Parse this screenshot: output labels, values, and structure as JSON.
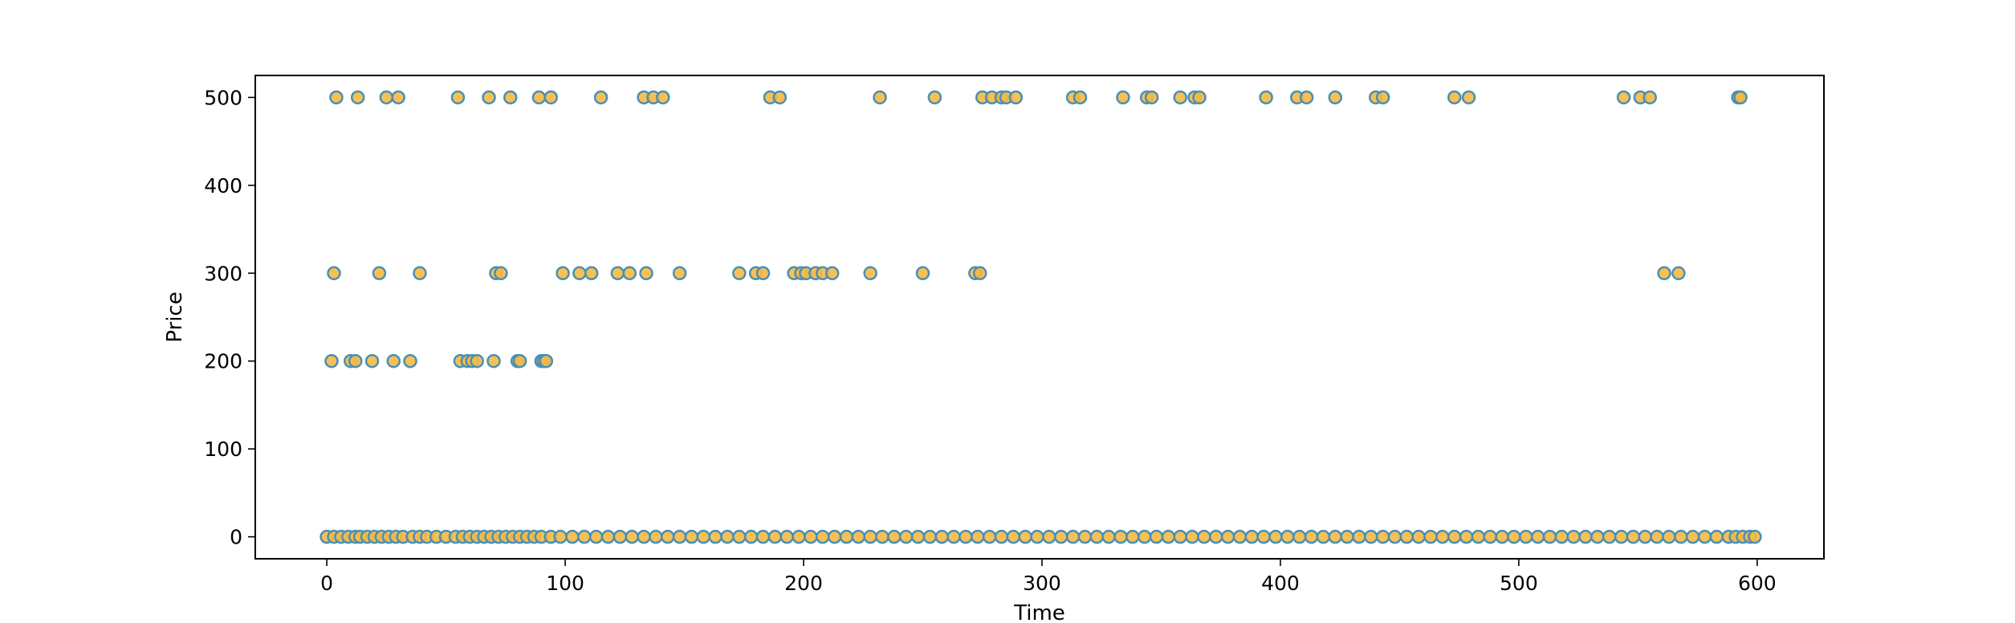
{
  "chart_data": {
    "type": "scatter",
    "title": "",
    "xlabel": "Time",
    "ylabel": "Price",
    "xlim": [
      -30,
      628
    ],
    "ylim": [
      -25,
      525
    ],
    "xticks": [
      0,
      100,
      200,
      300,
      400,
      500,
      600
    ],
    "yticks": [
      0,
      100,
      200,
      300,
      400,
      500
    ],
    "grid": false,
    "colors": {
      "marker_fill": "#f5b942",
      "marker_edge": "#4a8fb5",
      "frame": "#000000"
    },
    "series": [
      {
        "points": [
          [
            4,
            500
          ],
          [
            13,
            500
          ],
          [
            25,
            500
          ],
          [
            30,
            500
          ],
          [
            55,
            500
          ],
          [
            68,
            500
          ],
          [
            77,
            500
          ],
          [
            89,
            500
          ],
          [
            94,
            500
          ],
          [
            115,
            500
          ],
          [
            133,
            500
          ],
          [
            137,
            500
          ],
          [
            141,
            500
          ],
          [
            186,
            500
          ],
          [
            190,
            500
          ],
          [
            232,
            500
          ],
          [
            255,
            500
          ],
          [
            275,
            500
          ],
          [
            279,
            500
          ],
          [
            283,
            500
          ],
          [
            285,
            500
          ],
          [
            289,
            500
          ],
          [
            313,
            500
          ],
          [
            316,
            500
          ],
          [
            334,
            500
          ],
          [
            344,
            500
          ],
          [
            346,
            500
          ],
          [
            358,
            500
          ],
          [
            364,
            500
          ],
          [
            366,
            500
          ],
          [
            394,
            500
          ],
          [
            407,
            500
          ],
          [
            411,
            500
          ],
          [
            423,
            500
          ],
          [
            440,
            500
          ],
          [
            443,
            500
          ],
          [
            473,
            500
          ],
          [
            479,
            500
          ],
          [
            544,
            500
          ],
          [
            551,
            500
          ],
          [
            555,
            500
          ],
          [
            592,
            500
          ],
          [
            593,
            500
          ],
          [
            3,
            300
          ],
          [
            22,
            300
          ],
          [
            39,
            300
          ],
          [
            71,
            300
          ],
          [
            73,
            300
          ],
          [
            99,
            300
          ],
          [
            106,
            300
          ],
          [
            111,
            300
          ],
          [
            122,
            300
          ],
          [
            127,
            300
          ],
          [
            134,
            300
          ],
          [
            148,
            300
          ],
          [
            173,
            300
          ],
          [
            180,
            300
          ],
          [
            183,
            300
          ],
          [
            196,
            300
          ],
          [
            199,
            300
          ],
          [
            201,
            300
          ],
          [
            205,
            300
          ],
          [
            208,
            300
          ],
          [
            212,
            300
          ],
          [
            228,
            300
          ],
          [
            250,
            300
          ],
          [
            272,
            300
          ],
          [
            274,
            300
          ],
          [
            561,
            300
          ],
          [
            567,
            300
          ],
          [
            2,
            200
          ],
          [
            10,
            200
          ],
          [
            12,
            200
          ],
          [
            19,
            200
          ],
          [
            28,
            200
          ],
          [
            35,
            200
          ],
          [
            56,
            200
          ],
          [
            59,
            200
          ],
          [
            61,
            200
          ],
          [
            63,
            200
          ],
          [
            70,
            200
          ],
          [
            80,
            200
          ],
          [
            81,
            200
          ],
          [
            90,
            200
          ],
          [
            91,
            200
          ],
          [
            92,
            200
          ],
          [
            0,
            0
          ],
          [
            3,
            0
          ],
          [
            6,
            0
          ],
          [
            9,
            0
          ],
          [
            12,
            0
          ],
          [
            14,
            0
          ],
          [
            17,
            0
          ],
          [
            20,
            0
          ],
          [
            23,
            0
          ],
          [
            26,
            0
          ],
          [
            29,
            0
          ],
          [
            32,
            0
          ],
          [
            36,
            0
          ],
          [
            39,
            0
          ],
          [
            42,
            0
          ],
          [
            46,
            0
          ],
          [
            50,
            0
          ],
          [
            54,
            0
          ],
          [
            57,
            0
          ],
          [
            60,
            0
          ],
          [
            63,
            0
          ],
          [
            66,
            0
          ],
          [
            69,
            0
          ],
          [
            72,
            0
          ],
          [
            75,
            0
          ],
          [
            78,
            0
          ],
          [
            81,
            0
          ],
          [
            84,
            0
          ],
          [
            87,
            0
          ],
          [
            90,
            0
          ],
          [
            94,
            0
          ],
          [
            98,
            0
          ],
          [
            103,
            0
          ],
          [
            108,
            0
          ],
          [
            113,
            0
          ],
          [
            118,
            0
          ],
          [
            123,
            0
          ],
          [
            128,
            0
          ],
          [
            133,
            0
          ],
          [
            138,
            0
          ],
          [
            143,
            0
          ],
          [
            148,
            0
          ],
          [
            153,
            0
          ],
          [
            158,
            0
          ],
          [
            163,
            0
          ],
          [
            168,
            0
          ],
          [
            173,
            0
          ],
          [
            178,
            0
          ],
          [
            183,
            0
          ],
          [
            188,
            0
          ],
          [
            193,
            0
          ],
          [
            198,
            0
          ],
          [
            203,
            0
          ],
          [
            208,
            0
          ],
          [
            213,
            0
          ],
          [
            218,
            0
          ],
          [
            223,
            0
          ],
          [
            228,
            0
          ],
          [
            233,
            0
          ],
          [
            238,
            0
          ],
          [
            243,
            0
          ],
          [
            248,
            0
          ],
          [
            253,
            0
          ],
          [
            258,
            0
          ],
          [
            263,
            0
          ],
          [
            268,
            0
          ],
          [
            273,
            0
          ],
          [
            278,
            0
          ],
          [
            283,
            0
          ],
          [
            288,
            0
          ],
          [
            293,
            0
          ],
          [
            298,
            0
          ],
          [
            303,
            0
          ],
          [
            308,
            0
          ],
          [
            313,
            0
          ],
          [
            318,
            0
          ],
          [
            323,
            0
          ],
          [
            328,
            0
          ],
          [
            333,
            0
          ],
          [
            338,
            0
          ],
          [
            343,
            0
          ],
          [
            348,
            0
          ],
          [
            353,
            0
          ],
          [
            358,
            0
          ],
          [
            363,
            0
          ],
          [
            368,
            0
          ],
          [
            373,
            0
          ],
          [
            378,
            0
          ],
          [
            383,
            0
          ],
          [
            388,
            0
          ],
          [
            393,
            0
          ],
          [
            398,
            0
          ],
          [
            403,
            0
          ],
          [
            408,
            0
          ],
          [
            413,
            0
          ],
          [
            418,
            0
          ],
          [
            423,
            0
          ],
          [
            428,
            0
          ],
          [
            433,
            0
          ],
          [
            438,
            0
          ],
          [
            443,
            0
          ],
          [
            448,
            0
          ],
          [
            453,
            0
          ],
          [
            458,
            0
          ],
          [
            463,
            0
          ],
          [
            468,
            0
          ],
          [
            473,
            0
          ],
          [
            478,
            0
          ],
          [
            483,
            0
          ],
          [
            488,
            0
          ],
          [
            493,
            0
          ],
          [
            498,
            0
          ],
          [
            503,
            0
          ],
          [
            508,
            0
          ],
          [
            513,
            0
          ],
          [
            518,
            0
          ],
          [
            523,
            0
          ],
          [
            528,
            0
          ],
          [
            533,
            0
          ],
          [
            538,
            0
          ],
          [
            543,
            0
          ],
          [
            548,
            0
          ],
          [
            553,
            0
          ],
          [
            558,
            0
          ],
          [
            563,
            0
          ],
          [
            568,
            0
          ],
          [
            573,
            0
          ],
          [
            578,
            0
          ],
          [
            583,
            0
          ],
          [
            588,
            0
          ],
          [
            591,
            0
          ],
          [
            594,
            0
          ],
          [
            597,
            0
          ],
          [
            599,
            0
          ]
        ]
      }
    ]
  }
}
